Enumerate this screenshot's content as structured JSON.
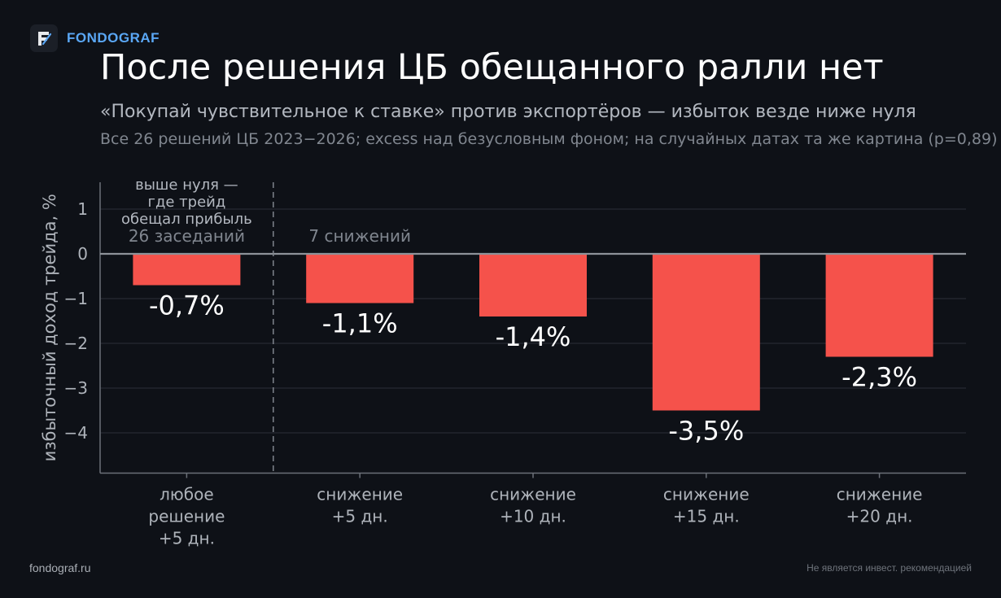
{
  "brand": {
    "name": "FONDOGRAF"
  },
  "header": {
    "title": "После решения ЦБ обещанного ралли нет",
    "subtitle": "«Покупай чувствительное к ставке» против экспортёров — избыток везде ниже нуля",
    "note": "Все 26 решений ЦБ 2023−2026; excess над безусловным фоном; на случайных датах та же картина (p=0,89)"
  },
  "chart_data": {
    "type": "bar",
    "categories": [
      [
        "любое",
        "решение",
        "+5 дн."
      ],
      [
        "снижение",
        "+5 дн."
      ],
      [
        "снижение",
        "+10 дн."
      ],
      [
        "снижение",
        "+15 дн."
      ],
      [
        "снижение",
        "+20 дн."
      ]
    ],
    "values": [
      -0.7,
      -1.1,
      -1.4,
      -3.5,
      -2.3
    ],
    "data_labels": [
      "-0,7%",
      "-1,1%",
      "-1,4%",
      "-3,5%",
      "-2,3%"
    ],
    "ylabel": "избыточный доход трейда, %",
    "ylim": [
      -4.9,
      1.6
    ],
    "yticks": [
      1,
      0,
      -1,
      -2,
      -3,
      -4
    ],
    "ytick_labels": [
      "1",
      "0",
      "−1",
      "−2",
      "−3",
      "−4"
    ],
    "grid": true,
    "bar_color": "#f5524b",
    "annotations": {
      "positive_zone": [
        "выше нуля —",
        "где трейд",
        "обещал прибыль"
      ],
      "group_all": "26 заседаний",
      "group_cuts": "7 снижений"
    }
  },
  "footer": {
    "left": "fondograf.ru",
    "right": "Не является инвест. рекомендацией"
  }
}
